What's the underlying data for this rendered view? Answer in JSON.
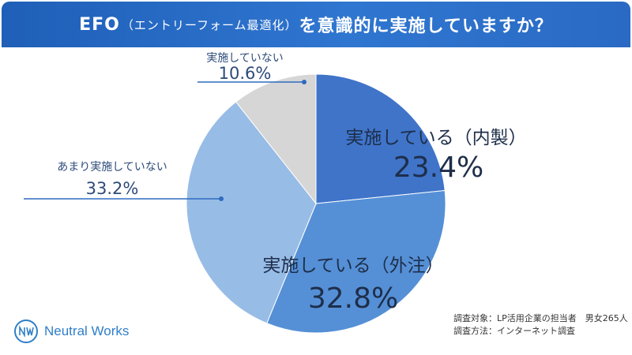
{
  "title": {
    "main_prefix": "EFO",
    "paren": "（エントリーフォーム最適化）",
    "main_suffix": "を意識的に実施していますか？"
  },
  "chart_data": {
    "type": "pie",
    "title": "EFO（エントリーフォーム最適化）を意識的に実施していますか？",
    "slices": [
      {
        "label": "実施している（内製）",
        "value": 23.4,
        "display": "23.4%",
        "color": "#3f74c9"
      },
      {
        "label": "実施している（外注）",
        "value": 32.8,
        "display": "32.8%",
        "color": "#5590d6"
      },
      {
        "label": "あまり実施していない",
        "value": 33.2,
        "display": "33.2%",
        "color": "#97bce6"
      },
      {
        "label": "実施していない",
        "value": 10.6,
        "display": "10.6%",
        "color": "#d6d6d6"
      }
    ],
    "start_angle": "12 o'clock",
    "direction": "clockwise"
  },
  "source": {
    "line1": "調査対象：LP活用企業の担当者　男女265人",
    "line2": "調査方法：インターネット調査"
  },
  "logo": {
    "text": "Neutral Works"
  }
}
